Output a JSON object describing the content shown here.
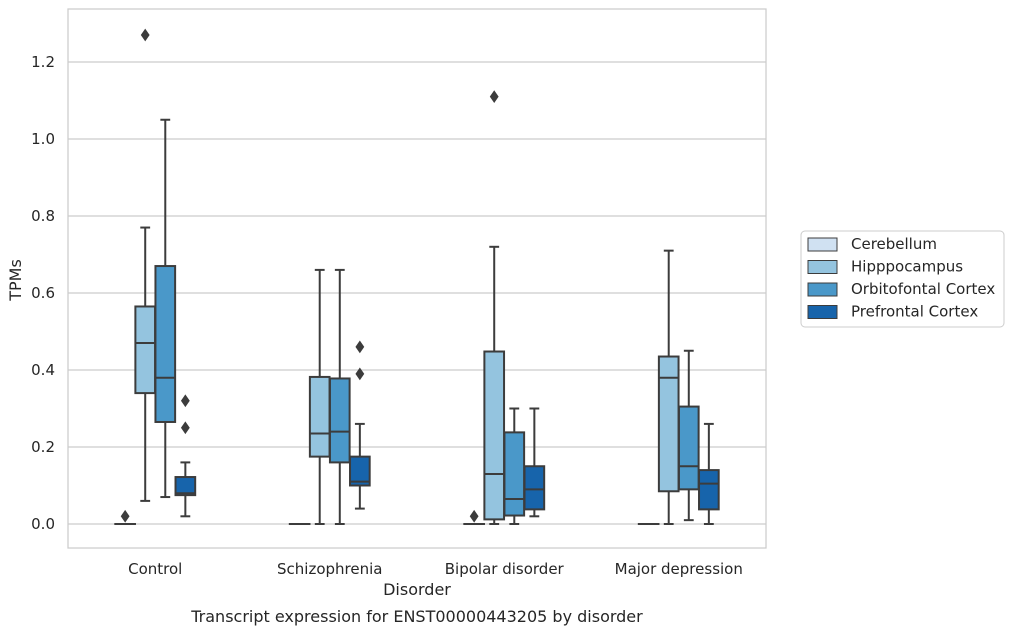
{
  "chart_data": {
    "type": "box",
    "caption": "Transcript expression for ENST00000443205 by disorder",
    "xlabel": "Disorder",
    "ylabel": "TPMs",
    "ylim": [
      -0.06,
      1.34
    ],
    "yticks": [
      0.0,
      0.2,
      0.4,
      0.6,
      0.8,
      1.0,
      1.2
    ],
    "ytick_labels": [
      "0.0",
      "0.2",
      "0.4",
      "0.6",
      "0.8",
      "1.0",
      "1.2"
    ],
    "grid": "horizontal",
    "legend_position": "right",
    "categories": [
      "Control",
      "Schizophrenia",
      "Bipolar disorder",
      "Major depression"
    ],
    "series": [
      {
        "name": "Cerebellum",
        "color": "#d0e1f2",
        "boxes": [
          {
            "whislo": 0.0,
            "q1": 0.0,
            "med": 0.0,
            "q3": 0.0,
            "whishi": 0.0,
            "fliers": [
              0.02
            ]
          },
          {
            "whislo": 0.0,
            "q1": 0.0,
            "med": 0.0,
            "q3": 0.0,
            "whishi": 0.0,
            "fliers": []
          },
          {
            "whislo": 0.0,
            "q1": 0.0,
            "med": 0.0,
            "q3": 0.0,
            "whishi": 0.0,
            "fliers": [
              0.02
            ]
          },
          {
            "whislo": 0.0,
            "q1": 0.0,
            "med": 0.0,
            "q3": 0.0,
            "whishi": 0.0,
            "fliers": []
          }
        ]
      },
      {
        "name": "Hipppocampus",
        "color": "#94c4df",
        "boxes": [
          {
            "whislo": 0.06,
            "q1": 0.34,
            "med": 0.47,
            "q3": 0.565,
            "whishi": 0.77,
            "fliers": [
              1.27
            ]
          },
          {
            "whislo": 0.0,
            "q1": 0.175,
            "med": 0.235,
            "q3": 0.382,
            "whishi": 0.66,
            "fliers": []
          },
          {
            "whislo": 0.0,
            "q1": 0.012,
            "med": 0.13,
            "q3": 0.448,
            "whishi": 0.72,
            "fliers": [
              1.11
            ]
          },
          {
            "whislo": 0.0,
            "q1": 0.085,
            "med": 0.38,
            "q3": 0.435,
            "whishi": 0.71,
            "fliers": []
          }
        ]
      },
      {
        "name": "Orbitofontal Cortex",
        "color": "#4a98c9",
        "boxes": [
          {
            "whislo": 0.07,
            "q1": 0.265,
            "med": 0.38,
            "q3": 0.67,
            "whishi": 1.05,
            "fliers": []
          },
          {
            "whislo": 0.0,
            "q1": 0.16,
            "med": 0.24,
            "q3": 0.378,
            "whishi": 0.66,
            "fliers": []
          },
          {
            "whislo": 0.0,
            "q1": 0.022,
            "med": 0.065,
            "q3": 0.238,
            "whishi": 0.3,
            "fliers": []
          },
          {
            "whislo": 0.01,
            "q1": 0.09,
            "med": 0.15,
            "q3": 0.305,
            "whishi": 0.45,
            "fliers": []
          }
        ]
      },
      {
        "name": "Prefrontal Cortex",
        "color": "#1764ab",
        "boxes": [
          {
            "whislo": 0.02,
            "q1": 0.075,
            "med": 0.08,
            "q3": 0.122,
            "whishi": 0.16,
            "fliers": [
              0.32,
              0.25
            ]
          },
          {
            "whislo": 0.04,
            "q1": 0.1,
            "med": 0.11,
            "q3": 0.175,
            "whishi": 0.26,
            "fliers": [
              0.46,
              0.39
            ]
          },
          {
            "whislo": 0.02,
            "q1": 0.038,
            "med": 0.09,
            "q3": 0.15,
            "whishi": 0.3,
            "fliers": []
          },
          {
            "whislo": 0.0,
            "q1": 0.038,
            "med": 0.105,
            "q3": 0.14,
            "whishi": 0.26,
            "fliers": []
          }
        ]
      }
    ]
  }
}
